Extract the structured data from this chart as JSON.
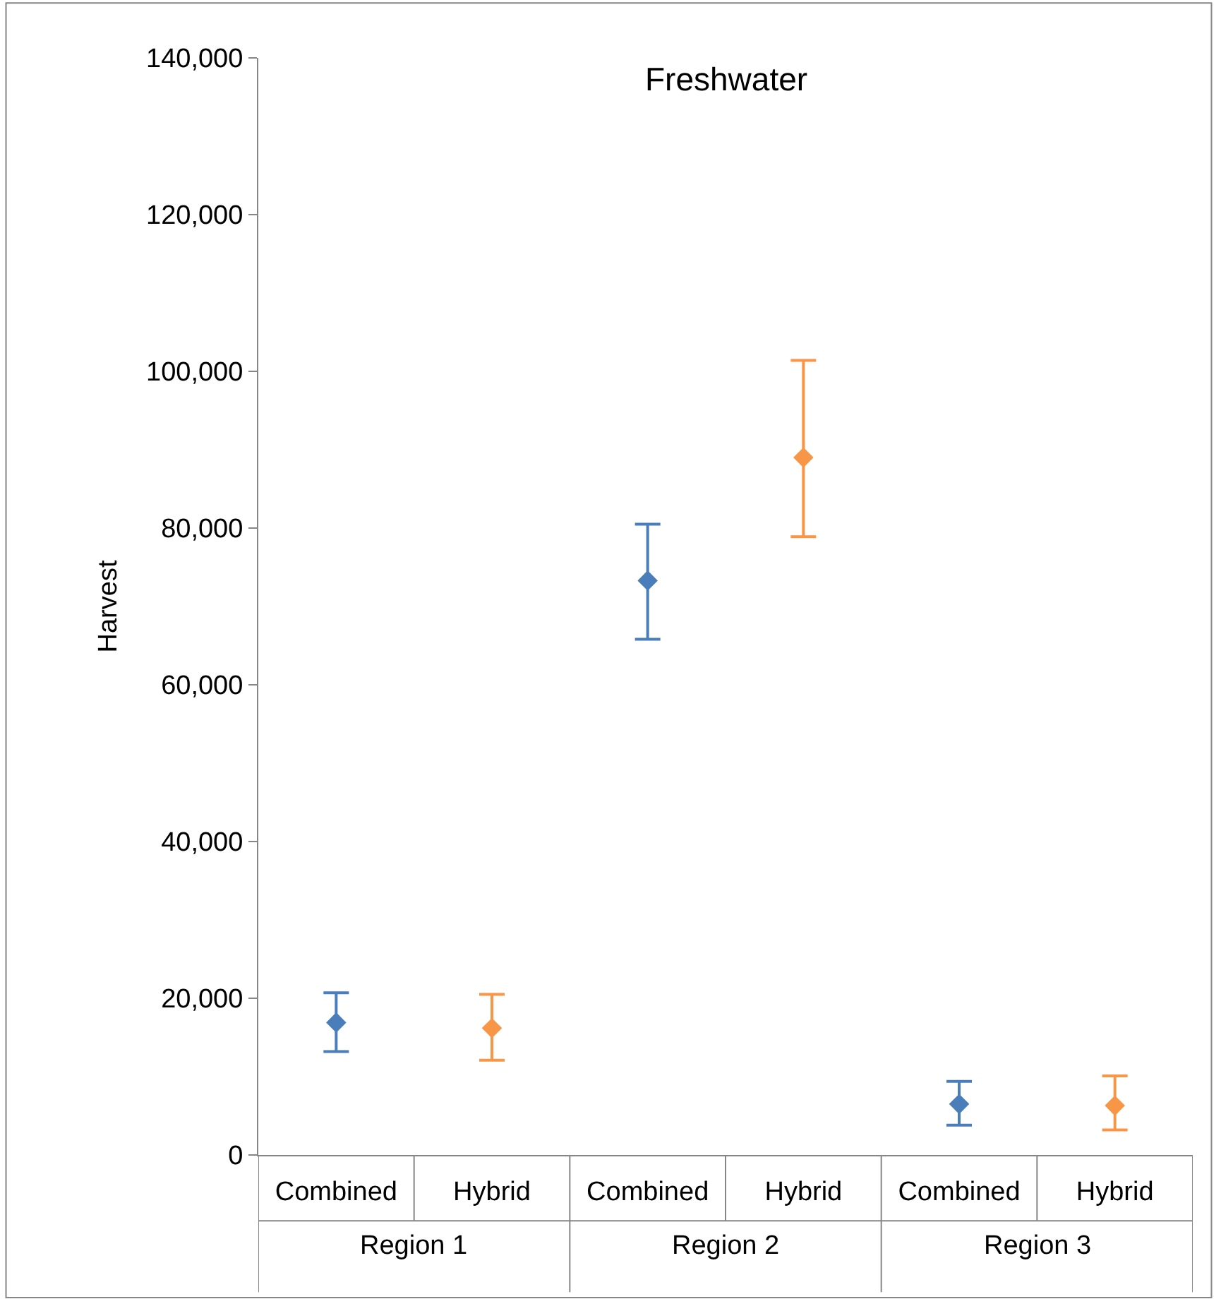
{
  "chart_data": {
    "type": "scatter",
    "title": "Freshwater",
    "ylabel": "Harvest",
    "categories": [
      "Combined",
      "Hybrid",
      "Combined",
      "Hybrid",
      "Combined",
      "Hybrid"
    ],
    "annotations": [
      "Region 1",
      "Region 2",
      "Region 3"
    ],
    "ylim": [
      0,
      140000
    ],
    "yticks": [
      {
        "value": 0,
        "label": "0"
      },
      {
        "value": 20000,
        "label": "20,000"
      },
      {
        "value": 40000,
        "label": "40,000"
      },
      {
        "value": 60000,
        "label": "60,000"
      },
      {
        "value": 80000,
        "label": "80,000"
      },
      {
        "value": 100000,
        "label": "100,000"
      },
      {
        "value": 120000,
        "label": "120,000"
      },
      {
        "value": 140000,
        "label": "140,000"
      }
    ],
    "series": [
      {
        "color": "#4a7ebb",
        "marker": "diamond",
        "values": [
          16900,
          null,
          73300,
          null,
          6500,
          null
        ],
        "errors": [
          [
            13200,
            20700
          ],
          null,
          [
            65800,
            80500
          ],
          null,
          [
            3800,
            9400
          ],
          null
        ]
      },
      {
        "color": "#f79646",
        "marker": "diamond",
        "values": [
          null,
          16200,
          null,
          89000,
          null,
          6300
        ],
        "errors": [
          null,
          [
            12100,
            20500
          ],
          null,
          [
            78900,
            101400
          ],
          null,
          [
            3200,
            10100
          ]
        ]
      }
    ]
  }
}
